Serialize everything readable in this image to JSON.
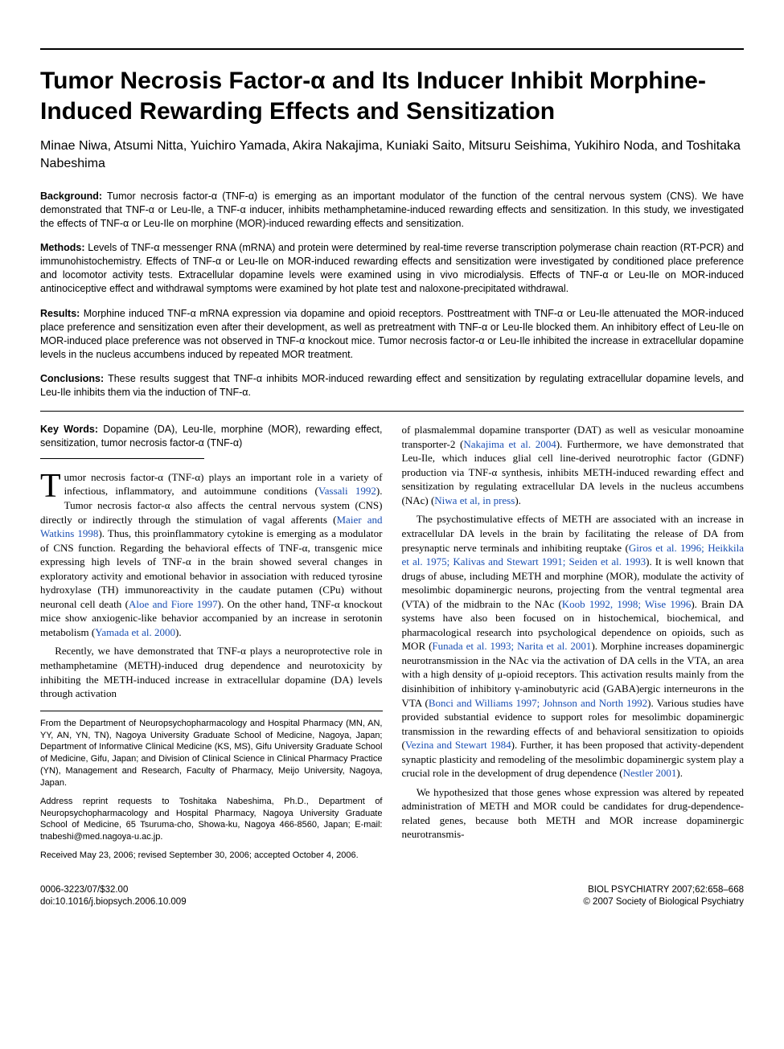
{
  "title": "Tumor Necrosis Factor-α and Its Inducer Inhibit Morphine-Induced Rewarding Effects and Sensitization",
  "authors": "Minae Niwa, Atsumi Nitta, Yuichiro Yamada, Akira Nakajima, Kuniaki Saito, Mitsuru Seishima, Yukihiro Noda, and Toshitaka Nabeshima",
  "abstract": {
    "background": {
      "label": "Background:",
      "text": "Tumor necrosis factor-α (TNF-α) is emerging as an important modulator of the function of the central nervous system (CNS). We have demonstrated that TNF-α or Leu-Ile, a TNF-α inducer, inhibits methamphetamine-induced rewarding effects and sensitization. In this study, we investigated the effects of TNF-α or Leu-Ile on morphine (MOR)-induced rewarding effects and sensitization."
    },
    "methods": {
      "label": "Methods:",
      "text": "Levels of TNF-α messenger RNA (mRNA) and protein were determined by real-time reverse transcription polymerase chain reaction (RT-PCR) and immunohistochemistry. Effects of TNF-α or Leu-Ile on MOR-induced rewarding effects and sensitization were investigated by conditioned place preference and locomotor activity tests. Extracellular dopamine levels were examined using in vivo microdialysis. Effects of TNF-α or Leu-Ile on MOR-induced antinociceptive effect and withdrawal symptoms were examined by hot plate test and naloxone-precipitated withdrawal."
    },
    "results": {
      "label": "Results:",
      "text": "Morphine induced TNF-α mRNA expression via dopamine and opioid receptors. Posttreatment with TNF-α or Leu-Ile attenuated the MOR-induced place preference and sensitization even after their development, as well as pretreatment with TNF-α or Leu-Ile blocked them. An inhibitory effect of Leu-Ile on MOR-induced place preference was not observed in TNF-α knockout mice. Tumor necrosis factor-α or Leu-Ile inhibited the increase in extracellular dopamine levels in the nucleus accumbens induced by repeated MOR treatment."
    },
    "conclusions": {
      "label": "Conclusions:",
      "text": "These results suggest that TNF-α inhibits MOR-induced rewarding effect and sensitization by regulating extracellular dopamine levels, and Leu-Ile inhibits them via the induction of TNF-α."
    }
  },
  "keywords": {
    "label": "Key Words:",
    "text": "Dopamine (DA), Leu-Ile, morphine (MOR), rewarding effect, sensitization, tumor necrosis factor-α (TNF-α)"
  },
  "body": {
    "p1a": "umor necrosis factor-α (TNF-α) plays an important role in a variety of infectious, inflammatory, and autoimmune conditions (",
    "p1_link1": "Vassali 1992",
    "p1b": "). Tumor necrosis factor-α also affects the central nervous system (CNS) directly or indirectly through the stimulation of vagal afferents (",
    "p1_link2": "Maier and Watkins 1998",
    "p1c": "). Thus, this proinflammatory cytokine is emerging as a modulator of CNS function. Regarding the behavioral effects of TNF-α, transgenic mice expressing high levels of TNF-α in the brain showed several changes in exploratory activity and emotional behavior in association with reduced tyrosine hydroxylase (TH) immunoreactivity in the caudate putamen (CPu) without neuronal cell death (",
    "p1_link3": "Aloe and Fiore 1997",
    "p1d": "). On the other hand, TNF-α knockout mice show anxiogenic-like behavior accompanied by an increase in serotonin metabolism (",
    "p1_link4": "Yamada et al. 2000",
    "p1e": ").",
    "p2": "Recently, we have demonstrated that TNF-α plays a neuroprotective role in methamphetamine (METH)-induced drug dependence and neurotoxicity by inhibiting the METH-induced increase in extracellular dopamine (DA) levels through activation",
    "p3a": "of plasmalemmal dopamine transporter (DAT) as well as vesicular monoamine transporter-2 (",
    "p3_link1": "Nakajima et al. 2004",
    "p3b": "). Furthermore, we have demonstrated that Leu-Ile, which induces glial cell line-derived neurotrophic factor (GDNF) production via TNF-α synthesis, inhibits METH-induced rewarding effect and sensitization by regulating extracellular DA levels in the nucleus accumbens (NAc) (",
    "p3_link2": "Niwa et al, in press",
    "p3c": ").",
    "p4a": "The psychostimulative effects of METH are associated with an increase in extracellular DA levels in the brain by facilitating the release of DA from presynaptic nerve terminals and inhibiting reuptake (",
    "p4_link1": "Giros et al. 1996; Heikkila et al. 1975; Kalivas and Stewart 1991; Seiden et al. 1993",
    "p4b": "). It is well known that drugs of abuse, including METH and morphine (MOR), modulate the activity of mesolimbic dopaminergic neurons, projecting from the ventral tegmental area (VTA) of the midbrain to the NAc (",
    "p4_link2": "Koob 1992, 1998; Wise 1996",
    "p4c": "). Brain DA systems have also been focused on in histochemical, biochemical, and pharmacological research into psychological dependence on opioids, such as MOR (",
    "p4_link3": "Funada et al. 1993; Narita et al. 2001",
    "p4d": "). Morphine increases dopaminergic neurotransmission in the NAc via the activation of DA cells in the VTA, an area with a high density of μ-opioid receptors. This activation results mainly from the disinhibition of inhibitory γ-aminobutyric acid (GABA)ergic interneurons in the VTA (",
    "p4_link4": "Bonci and Williams 1997; Johnson and North 1992",
    "p4e": "). Various studies have provided substantial evidence to support roles for mesolimbic dopaminergic transmission in the rewarding effects of and behavioral sensitization to opioids (",
    "p4_link5": "Vezina and Stewart 1984",
    "p4f": "). Further, it has been proposed that activity-dependent synaptic plasticity and remodeling of the mesolimbic dopaminergic system play a crucial role in the development of drug dependence (",
    "p4_link6": "Nestler 2001",
    "p4g": ").",
    "p5": "We hypothesized that those genes whose expression was altered by repeated administration of METH and MOR could be candidates for drug-dependence-related genes, because both METH and MOR increase dopaminergic neurotransmis-"
  },
  "affiliations": {
    "from": "From the Department of Neuropsychopharmacology and Hospital Pharmacy (MN, AN, YY, AN, YN, TN), Nagoya University Graduate School of Medicine, Nagoya, Japan; Department of Informative Clinical Medicine (KS, MS), Gifu University Graduate School of Medicine, Gifu, Japan; and Division of Clinical Science in Clinical Pharmacy Practice (YN), Management and Research, Faculty of Pharmacy, Meijo University, Nagoya, Japan.",
    "address": "Address reprint requests to Toshitaka Nabeshima, Ph.D., Department of Neuropsychopharmacology and Hospital Pharmacy, Nagoya University Graduate School of Medicine, 65 Tsuruma-cho, Showa-ku, Nagoya 466-8560, Japan; E-mail: tnabeshi@med.nagoya-u.ac.jp.",
    "received": "Received May 23, 2006; revised September 30, 2006; accepted October 4, 2006."
  },
  "footer": {
    "left1": "0006-3223/07/$32.00",
    "left2": "doi:10.1016/j.biopsych.2006.10.009",
    "right1": "BIOL PSYCHIATRY 2007;62:658–668",
    "right2": "© 2007 Society of Biological Psychiatry"
  }
}
